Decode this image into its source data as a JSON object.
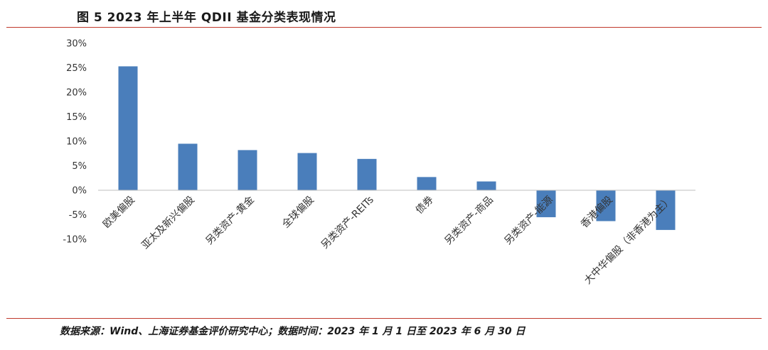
{
  "figure": {
    "title": "图 5 2023 年上半年 QDII 基金分类表现情况",
    "source": "数据来源：Wind、上海证券基金评价研究中心；数据时间：2023 年 1 月 1 日至 2023 年 6 月 30 日"
  },
  "chart_data": {
    "type": "bar",
    "title": "",
    "xlabel": "",
    "ylabel": "",
    "categories": [
      "欧美偏股",
      "亚太及新兴偏股",
      "另类资产-黄金",
      "全球偏股",
      "另类资产-REITs",
      "债券",
      "另类资产-商品",
      "另类资产-能源",
      "香港偏股",
      "大中华偏股（非香港为主）"
    ],
    "values": [
      25.3,
      9.5,
      8.2,
      7.6,
      6.4,
      2.7,
      1.8,
      -5.5,
      -6.3,
      -8.1
    ],
    "ylim": [
      -10,
      30
    ],
    "yticks": [
      "-10%",
      "-5%",
      "0%",
      "5%",
      "10%",
      "15%",
      "20%",
      "25%",
      "30%"
    ],
    "bar_color": "#4a7ebb",
    "grid": false,
    "legend": "none"
  },
  "colors": {
    "rule": "#c0392b",
    "axis": "#bfbfbf"
  }
}
